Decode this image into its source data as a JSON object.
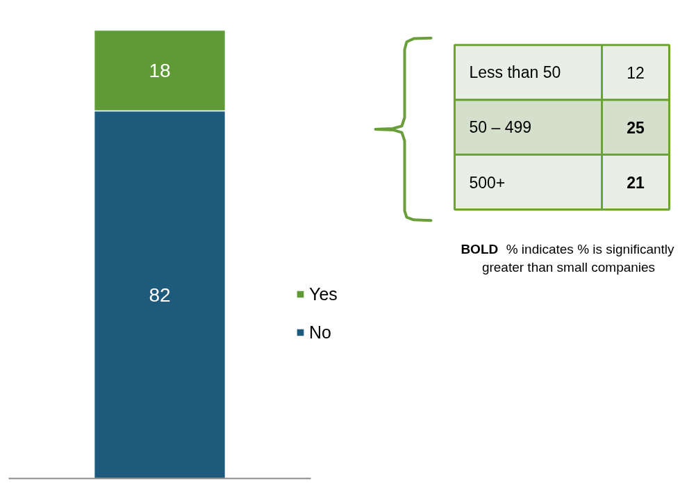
{
  "chart_data": [
    {
      "type": "bar",
      "categories": [
        null
      ],
      "stacked": true,
      "data_labels": true,
      "ylim": [
        0,
        100
      ],
      "legend": "right",
      "series": [
        {
          "name": "No",
          "color": "#1d5a7c",
          "values": [
            82
          ]
        },
        {
          "name": "Yes",
          "color": "#5f9a37",
          "values": [
            18
          ]
        }
      ]
    },
    {
      "type": "other",
      "categories": [
        "Less than 50",
        "50 – 499",
        "500+"
      ],
      "values": [
        12,
        25,
        21
      ],
      "data_labels": true,
      "annotations": [
        "BOLD % indicates % is significantly greater than small companies"
      ]
    }
  ]
}
